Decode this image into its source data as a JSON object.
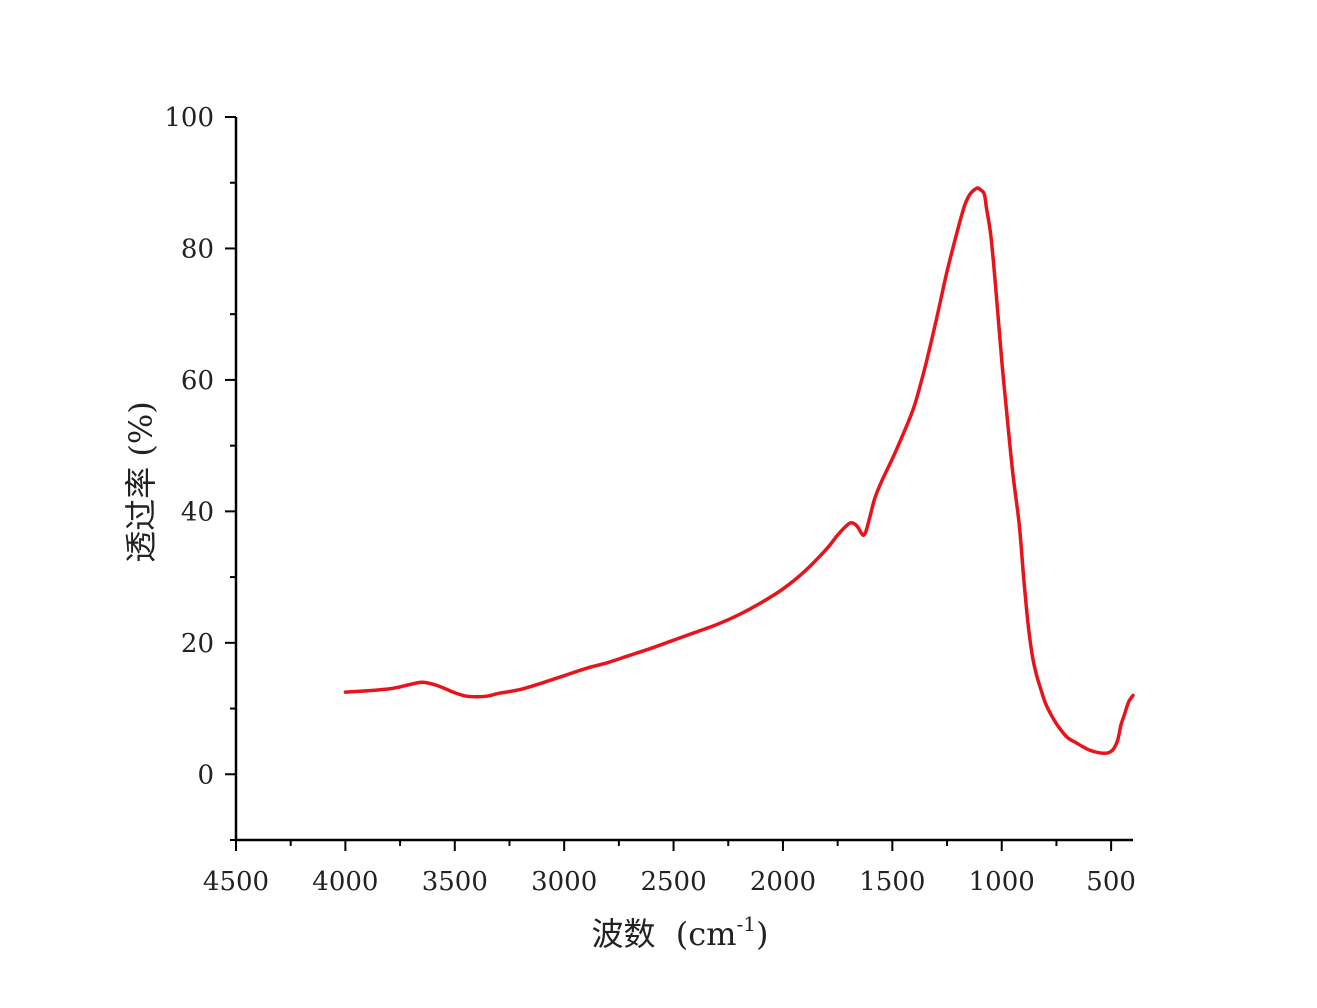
{
  "chart_data": {
    "type": "line",
    "title": "",
    "xlabel": "波数",
    "xlabel_unit": "(cm",
    "xlabel_unit_sup": "-1",
    "xlabel_unit_close": ")",
    "ylabel": "透过率 (%)",
    "xlim": [
      4500,
      400
    ],
    "ylim": [
      -10,
      100
    ],
    "x_ticks": [
      4500,
      4000,
      3500,
      3000,
      2500,
      2000,
      1500,
      1000,
      500
    ],
    "y_ticks": [
      0,
      20,
      40,
      60,
      80,
      100
    ],
    "grid": false,
    "legend": "none",
    "series": [
      {
        "color": "#e8141c",
        "x": [
          4000,
          3900,
          3800,
          3750,
          3700,
          3650,
          3600,
          3550,
          3500,
          3450,
          3400,
          3350,
          3300,
          3200,
          3100,
          3000,
          2900,
          2800,
          2700,
          2600,
          2500,
          2400,
          2300,
          2200,
          2100,
          2000,
          1900,
          1800,
          1750,
          1700,
          1680,
          1660,
          1640,
          1630,
          1620,
          1600,
          1580,
          1550,
          1500,
          1450,
          1400,
          1350,
          1300,
          1250,
          1200,
          1170,
          1150,
          1130,
          1110,
          1100,
          1080,
          1070,
          1050,
          1030,
          1000,
          980,
          950,
          920,
          900,
          880,
          860,
          840,
          820,
          800,
          770,
          740,
          700,
          660,
          630,
          600,
          560,
          530,
          510,
          490,
          470,
          455,
          440,
          420,
          400
        ],
        "y": [
          12.5,
          12.7,
          13.0,
          13.3,
          13.7,
          14.0,
          13.7,
          13.1,
          12.4,
          11.9,
          11.8,
          11.9,
          12.3,
          12.9,
          13.9,
          15.0,
          16.1,
          17.0,
          18.1,
          19.2,
          20.4,
          21.6,
          22.8,
          24.3,
          26.1,
          28.2,
          30.9,
          34.3,
          36.4,
          38.1,
          38.2,
          37.7,
          36.6,
          36.4,
          37.0,
          39.5,
          42.0,
          44.5,
          48.0,
          51.8,
          56.0,
          62.0,
          69.0,
          76.5,
          83.0,
          86.5,
          88.0,
          88.8,
          89.2,
          89.0,
          88.3,
          86.2,
          82.0,
          75.0,
          63.0,
          56.0,
          46.0,
          38.0,
          30.0,
          23.0,
          18.0,
          15.0,
          12.8,
          10.8,
          8.8,
          7.2,
          5.6,
          4.8,
          4.2,
          3.7,
          3.3,
          3.2,
          3.3,
          3.8,
          5.2,
          7.5,
          9.0,
          11.0,
          12.0
        ]
      }
    ]
  }
}
